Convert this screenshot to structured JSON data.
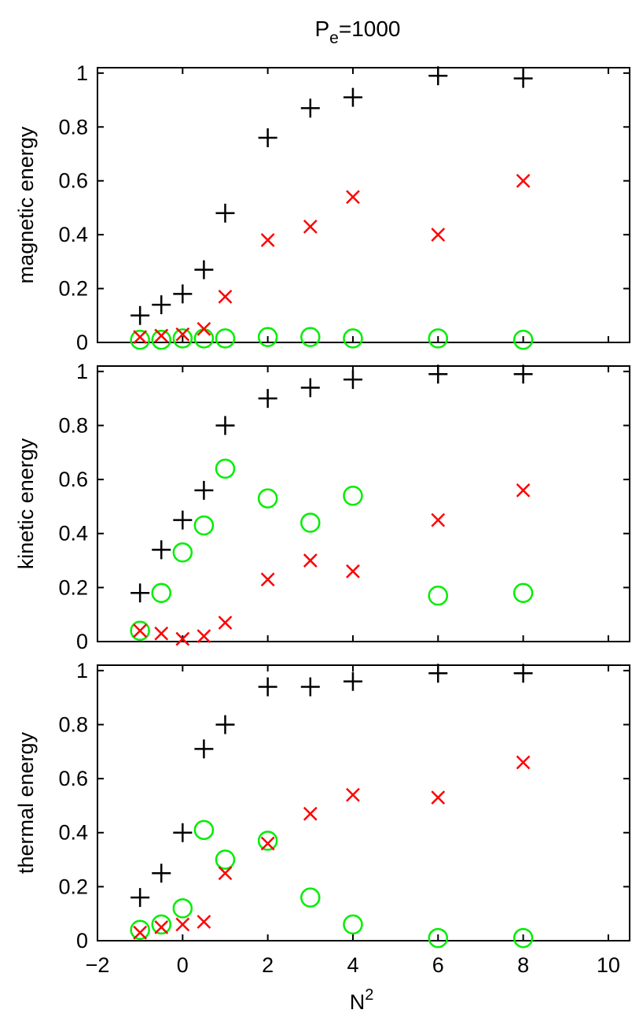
{
  "chart_data": {
    "type": "scatter",
    "title": "P",
    "title_subscript": "e",
    "title_suffix": "=1000",
    "xlabel": "N",
    "xlabel_superscript": "2",
    "xlim": [
      -2,
      10.5
    ],
    "x_ticks": [
      "−2",
      "0",
      "2",
      "4",
      "6",
      "8",
      "10"
    ],
    "x_tick_values": [
      -2,
      0,
      2,
      4,
      6,
      8,
      10
    ],
    "y_ticks": [
      "0",
      "0.2",
      "0.4",
      "0.6",
      "0.8",
      "1"
    ],
    "y_tick_values": [
      0,
      0.2,
      0.4,
      0.6,
      0.8,
      1
    ],
    "colors": {
      "plus": "#000000",
      "cross": "#ff0000",
      "circle": "#00ee00"
    },
    "x": [
      -1,
      -0.5,
      0,
      0.5,
      1,
      2,
      3,
      4,
      6,
      8
    ],
    "panels": [
      {
        "ylabel": "magnetic energy",
        "ylim": [
          0,
          1.02
        ],
        "series": [
          {
            "name": "plus",
            "marker": "plus",
            "values": [
              0.1,
              0.14,
              0.18,
              0.27,
              0.48,
              0.76,
              0.87,
              0.91,
              0.99,
              0.98
            ]
          },
          {
            "name": "cross",
            "marker": "cross",
            "values": [
              0.02,
              0.025,
              0.03,
              0.05,
              0.17,
              0.38,
              0.43,
              0.54,
              0.4,
              0.6
            ]
          },
          {
            "name": "circle",
            "marker": "circle",
            "values": [
              0.01,
              0.01,
              0.015,
              0.015,
              0.015,
              0.02,
              0.02,
              0.015,
              0.015,
              0.01
            ]
          }
        ]
      },
      {
        "ylabel": "kinetic energy",
        "ylim": [
          0,
          1.02
        ],
        "series": [
          {
            "name": "plus",
            "marker": "plus",
            "values": [
              0.18,
              0.34,
              0.45,
              0.56,
              0.8,
              0.9,
              0.94,
              0.97,
              0.99,
              0.99
            ]
          },
          {
            "name": "cross",
            "marker": "cross",
            "values": [
              0.04,
              0.03,
              0.01,
              0.02,
              0.07,
              0.23,
              0.3,
              0.26,
              0.45,
              0.56
            ]
          },
          {
            "name": "circle",
            "marker": "circle",
            "values": [
              0.04,
              0.18,
              0.33,
              0.43,
              0.64,
              0.53,
              0.44,
              0.54,
              0.17,
              0.18
            ]
          }
        ]
      },
      {
        "ylabel": "thermal energy",
        "ylim": [
          0,
          1.02
        ],
        "series": [
          {
            "name": "plus",
            "marker": "plus",
            "values": [
              0.16,
              0.25,
              0.4,
              0.71,
              0.8,
              0.94,
              0.94,
              0.96,
              0.99,
              0.99
            ]
          },
          {
            "name": "cross",
            "marker": "cross",
            "values": [
              0.03,
              0.05,
              0.06,
              0.07,
              0.25,
              0.36,
              0.47,
              0.54,
              0.53,
              0.66
            ]
          },
          {
            "name": "circle",
            "marker": "circle",
            "values": [
              0.04,
              0.06,
              0.12,
              0.41,
              0.3,
              0.37,
              0.16,
              0.06,
              0.01,
              0.01
            ]
          }
        ]
      }
    ]
  }
}
